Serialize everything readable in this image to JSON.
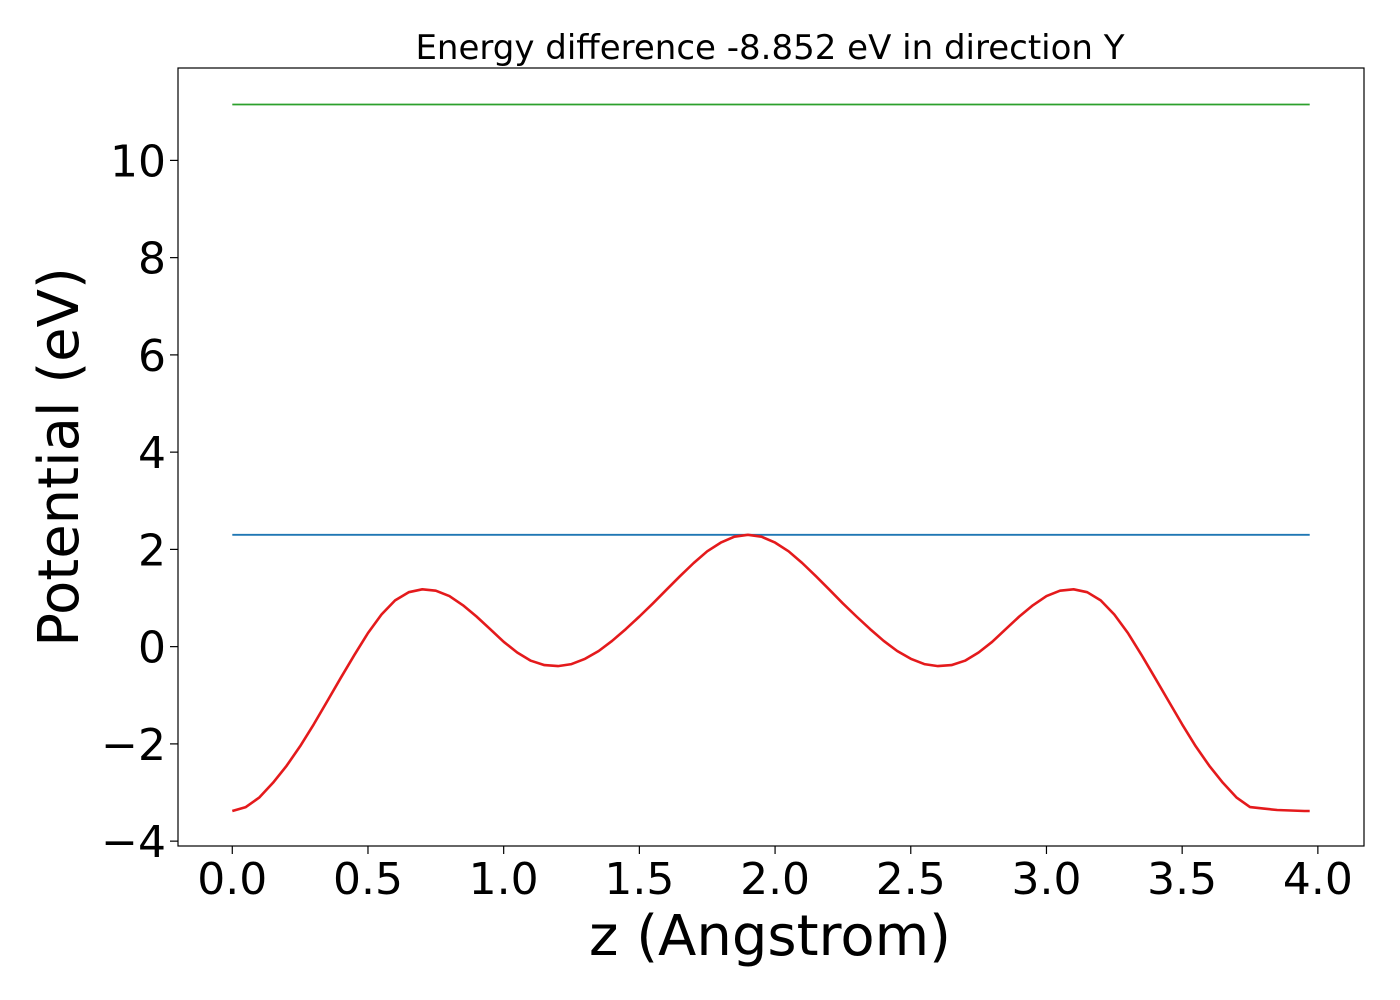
{
  "chart_data": {
    "type": "line",
    "title": "Energy difference -8.852 eV in direction Y",
    "xlabel": "z (Angstrom)",
    "ylabel": "Potential (eV)",
    "xlim": [
      -0.2,
      4.17
    ],
    "ylim": [
      -4.1,
      11.9
    ],
    "xticks": [
      0.0,
      0.5,
      1.0,
      1.5,
      2.0,
      2.5,
      3.0,
      3.5,
      4.0
    ],
    "xtick_labels": [
      "0.0",
      "0.5",
      "1.0",
      "1.5",
      "2.0",
      "2.5",
      "3.0",
      "3.5",
      "4.0"
    ],
    "yticks": [
      -4,
      -2,
      0,
      2,
      4,
      6,
      8,
      10
    ],
    "ytick_labels": [
      "−4",
      "−2",
      "0",
      "2",
      "4",
      "6",
      "8",
      "10"
    ],
    "grid": false,
    "series": [
      {
        "color": "#2ca02c",
        "x": [
          0.0,
          3.97
        ],
        "y": [
          11.15,
          11.15
        ]
      },
      {
        "color": "#1f77b4",
        "x": [
          0.0,
          3.97
        ],
        "y": [
          2.3,
          2.3
        ]
      },
      {
        "color": "#e41a1c",
        "x": [
          0.0,
          0.05,
          0.1,
          0.15,
          0.2,
          0.25,
          0.3,
          0.35,
          0.4,
          0.45,
          0.5,
          0.55,
          0.6,
          0.65,
          0.7,
          0.75,
          0.8,
          0.85,
          0.9,
          0.95,
          1.0,
          1.05,
          1.1,
          1.15,
          1.2,
          1.25,
          1.3,
          1.35,
          1.4,
          1.45,
          1.5,
          1.55,
          1.6,
          1.65,
          1.7,
          1.75,
          1.8,
          1.85,
          1.9,
          1.95,
          2.0,
          2.05,
          2.1,
          2.15,
          2.2,
          2.25,
          2.3,
          2.35,
          2.4,
          2.45,
          2.5,
          2.55,
          2.6,
          2.65,
          2.7,
          2.75,
          2.8,
          2.85,
          2.9,
          2.95,
          3.0,
          3.05,
          3.1,
          3.15,
          3.2,
          3.25,
          3.3,
          3.35,
          3.4,
          3.45,
          3.5,
          3.55,
          3.6,
          3.65,
          3.7,
          3.75,
          3.8,
          3.85,
          3.9,
          3.95,
          3.97
        ],
        "y": [
          -3.38,
          -3.3,
          -3.1,
          -2.8,
          -2.45,
          -2.05,
          -1.6,
          -1.12,
          -0.64,
          -0.17,
          0.28,
          0.66,
          0.95,
          1.12,
          1.18,
          1.15,
          1.04,
          0.85,
          0.62,
          0.36,
          0.1,
          -0.12,
          -0.29,
          -0.38,
          -0.4,
          -0.36,
          -0.25,
          -0.09,
          0.12,
          0.36,
          0.62,
          0.89,
          1.17,
          1.45,
          1.72,
          1.96,
          2.14,
          2.26,
          2.3,
          2.26,
          2.14,
          1.96,
          1.72,
          1.45,
          1.17,
          0.89,
          0.62,
          0.36,
          0.12,
          -0.09,
          -0.25,
          -0.36,
          -0.4,
          -0.38,
          -0.29,
          -0.12,
          0.1,
          0.36,
          0.62,
          0.85,
          1.04,
          1.15,
          1.18,
          1.12,
          0.95,
          0.66,
          0.28,
          -0.17,
          -0.64,
          -1.12,
          -1.6,
          -2.05,
          -2.45,
          -2.8,
          -3.1,
          -3.3,
          -3.33,
          -3.36,
          -3.37,
          -3.38,
          -3.38
        ]
      }
    ]
  }
}
